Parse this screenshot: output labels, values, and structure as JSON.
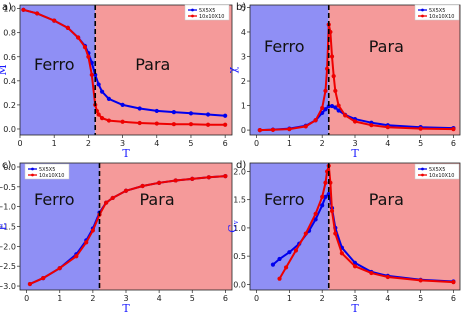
{
  "figure": {
    "colors": {
      "ferro_region": "#8f8ff5",
      "para_region": "#f59a9a",
      "series_5x5x5": "#0000ee",
      "series_10x10x10": "#ee0000",
      "critical_line": "#000000"
    },
    "regions": {
      "left_label": "Ferro",
      "right_label": "Para",
      "critical_T": 2.2
    }
  },
  "chart_data": [
    {
      "type": "line",
      "panel_label": "a)",
      "xlabel": "T",
      "ylabel": "M",
      "xlim": [
        0,
        6.2
      ],
      "ylim": [
        -0.05,
        1.03
      ],
      "xticks": [
        0,
        1,
        2,
        3,
        4,
        5,
        6
      ],
      "yticks": [
        0.0,
        0.2,
        0.4,
        0.6,
        0.8,
        1.0
      ],
      "ytick_labels": [
        "0.0",
        "0.2",
        "0.4",
        "0.6",
        "0.8",
        "1.0"
      ],
      "legend": {
        "position": "top-right",
        "entries": [
          "5X5X5",
          "10x10X10"
        ]
      },
      "series": [
        {
          "name": "5X5X5",
          "x": [
            0.1,
            0.5,
            1.0,
            1.4,
            1.7,
            1.9,
            2.0,
            2.1,
            2.2,
            2.3,
            2.4,
            2.6,
            3.0,
            3.5,
            4.0,
            4.5,
            5.0,
            5.5,
            6.0
          ],
          "y": [
            0.99,
            0.96,
            0.9,
            0.84,
            0.76,
            0.69,
            0.63,
            0.55,
            0.45,
            0.37,
            0.31,
            0.25,
            0.2,
            0.17,
            0.15,
            0.14,
            0.13,
            0.12,
            0.11
          ]
        },
        {
          "name": "10x10X10",
          "x": [
            0.1,
            0.5,
            1.0,
            1.4,
            1.7,
            1.9,
            2.0,
            2.1,
            2.2,
            2.25,
            2.3,
            2.4,
            2.6,
            3.0,
            3.5,
            4.0,
            4.5,
            5.0,
            5.5,
            6.0
          ],
          "y": [
            0.99,
            0.96,
            0.9,
            0.84,
            0.76,
            0.68,
            0.6,
            0.45,
            0.2,
            0.15,
            0.12,
            0.09,
            0.07,
            0.06,
            0.05,
            0.045,
            0.04,
            0.04,
            0.035,
            0.035
          ]
        }
      ]
    },
    {
      "type": "line",
      "panel_label": "b)",
      "xlabel": "T",
      "ylabel": "χ",
      "xlim": [
        -0.2,
        6.2
      ],
      "ylim": [
        -0.2,
        5.1
      ],
      "xticks": [
        0,
        1,
        2,
        3,
        4,
        5,
        6
      ],
      "yticks": [
        0,
        1,
        2,
        3,
        4,
        5
      ],
      "ytick_labels": [
        "0",
        "1",
        "2",
        "3",
        "4",
        "5"
      ],
      "legend": {
        "position": "top-right",
        "entries": [
          "5X5X5",
          "10x10X10"
        ]
      },
      "series": [
        {
          "name": "5X5X5",
          "x": [
            0.1,
            0.5,
            1.0,
            1.5,
            1.8,
            2.0,
            2.1,
            2.2,
            2.3,
            2.4,
            2.5,
            2.7,
            3.0,
            3.5,
            4.0,
            5.0,
            6.0
          ],
          "y": [
            0.0,
            0.02,
            0.06,
            0.18,
            0.4,
            0.7,
            0.85,
            0.97,
            0.98,
            0.92,
            0.8,
            0.62,
            0.45,
            0.3,
            0.2,
            0.12,
            0.08
          ]
        },
        {
          "name": "10x10X10",
          "x": [
            0.1,
            0.5,
            1.0,
            1.5,
            1.8,
            2.0,
            2.1,
            2.15,
            2.2,
            2.25,
            2.3,
            2.35,
            2.4,
            2.5,
            2.7,
            3.0,
            3.5,
            4.0,
            5.0,
            6.0
          ],
          "y": [
            0.0,
            0.01,
            0.04,
            0.15,
            0.4,
            0.9,
            1.6,
            2.5,
            4.3,
            4.0,
            3.0,
            2.2,
            1.6,
            1.0,
            0.6,
            0.35,
            0.2,
            0.12,
            0.06,
            0.04
          ]
        }
      ]
    },
    {
      "type": "line",
      "panel_label": "c)",
      "xlabel": "T",
      "ylabel": "E",
      "xlim": [
        -0.2,
        6.2
      ],
      "ylim": [
        -3.1,
        0.1
      ],
      "xticks": [
        0,
        1,
        2,
        3,
        4,
        5,
        6
      ],
      "yticks": [
        0.0,
        -0.5,
        -1.0,
        -1.5,
        -2.0,
        -2.5,
        -3.0
      ],
      "ytick_labels": [
        "0.0",
        "−0.5",
        "−1.0",
        "−1.5",
        "−2.0",
        "−2.5",
        "−3.0"
      ],
      "legend": {
        "position": "top-left",
        "entries": [
          "5X5X5",
          "10x10X10"
        ]
      },
      "series": [
        {
          "name": "5X5X5",
          "x": [
            0.1,
            0.5,
            1.0,
            1.5,
            1.8,
            2.0,
            2.2,
            2.4,
            2.6,
            3.0,
            3.5,
            4.0,
            4.5,
            5.0,
            5.5,
            6.0
          ],
          "y": [
            -2.95,
            -2.8,
            -2.55,
            -2.2,
            -1.85,
            -1.55,
            -1.15,
            -0.9,
            -0.78,
            -0.6,
            -0.48,
            -0.4,
            -0.34,
            -0.3,
            -0.26,
            -0.23
          ]
        },
        {
          "name": "10x10X10",
          "x": [
            0.1,
            0.5,
            1.0,
            1.5,
            1.8,
            2.0,
            2.2,
            2.4,
            2.6,
            3.0,
            3.5,
            4.0,
            4.5,
            5.0,
            5.5,
            6.0
          ],
          "y": [
            -2.95,
            -2.8,
            -2.55,
            -2.25,
            -1.9,
            -1.6,
            -1.2,
            -0.9,
            -0.78,
            -0.6,
            -0.48,
            -0.4,
            -0.34,
            -0.3,
            -0.26,
            -0.23
          ]
        }
      ]
    },
    {
      "type": "line",
      "panel_label": "d)",
      "xlabel": "T",
      "ylabel": "C_v",
      "xlim": [
        -0.2,
        6.2
      ],
      "ylim": [
        -0.1,
        2.15
      ],
      "xticks": [
        0,
        1,
        2,
        3,
        4,
        5,
        6
      ],
      "yticks": [
        0.0,
        0.5,
        1.0,
        1.5,
        2.0
      ],
      "ytick_labels": [
        "0.0",
        "0.5",
        "1.0",
        "1.5",
        "2.0"
      ],
      "legend": {
        "position": "top-right",
        "entries": [
          "5X5X5",
          "10x10X10"
        ]
      },
      "series": [
        {
          "name": "5X5X5",
          "x": [
            0.5,
            0.7,
            1.0,
            1.3,
            1.6,
            1.8,
            2.0,
            2.1,
            2.2,
            2.3,
            2.4,
            2.6,
            3.0,
            3.5,
            4.0,
            5.0,
            6.0
          ],
          "y": [
            0.35,
            0.45,
            0.57,
            0.72,
            0.95,
            1.15,
            1.4,
            1.55,
            1.6,
            1.35,
            1.0,
            0.65,
            0.38,
            0.22,
            0.15,
            0.08,
            0.05
          ]
        },
        {
          "name": "10x10X10",
          "x": [
            0.7,
            0.9,
            1.2,
            1.5,
            1.8,
            2.0,
            2.1,
            2.15,
            2.2,
            2.25,
            2.3,
            2.4,
            2.6,
            3.0,
            3.5,
            4.0,
            5.0,
            6.0
          ],
          "y": [
            0.1,
            0.3,
            0.6,
            0.9,
            1.25,
            1.55,
            1.8,
            2.0,
            2.1,
            1.8,
            1.3,
            0.9,
            0.55,
            0.32,
            0.2,
            0.13,
            0.07,
            0.04
          ]
        }
      ]
    }
  ]
}
